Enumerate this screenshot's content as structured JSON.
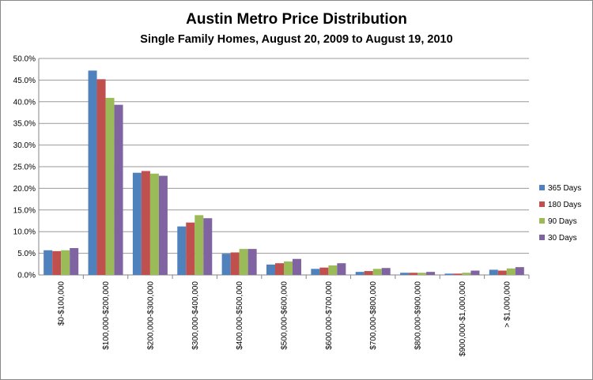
{
  "chart_data": {
    "type": "bar",
    "title": "Austin Metro Price Distribution",
    "subtitle": "Single Family Homes, August 20, 2009 to August 19, 2010",
    "xlabel": "",
    "ylabel": "",
    "ylim": [
      0,
      50
    ],
    "yticks": [
      "0.0%",
      "5.0%",
      "10.0%",
      "15.0%",
      "20.0%",
      "25.0%",
      "30.0%",
      "35.0%",
      "40.0%",
      "45.0%",
      "50.0%"
    ],
    "grid": true,
    "legend_position": "right",
    "categories": [
      "$0-$100,000",
      "$100,000-$200,000",
      "$200,000-$300,000",
      "$300,000-$400,000",
      "$400,000-$500,000",
      "$500,000-$600,000",
      "$600,000-$700,000",
      "$700,000-$800,000",
      "$800,000-$900,000",
      "$900,000-$1,000,000",
      "> $1,000,000"
    ],
    "series": [
      {
        "name": "365 Days",
        "color": "#4f81bd",
        "values": [
          5.7,
          47.2,
          23.6,
          11.2,
          4.9,
          2.4,
          1.4,
          0.7,
          0.5,
          0.3,
          1.2
        ]
      },
      {
        "name": "180 Days",
        "color": "#c0504d",
        "values": [
          5.5,
          45.2,
          24.0,
          12.1,
          5.2,
          2.7,
          1.7,
          0.9,
          0.5,
          0.3,
          1.0
        ]
      },
      {
        "name": "90 Days",
        "color": "#9bbb59",
        "values": [
          5.7,
          40.9,
          23.4,
          13.8,
          6.0,
          3.1,
          2.2,
          1.4,
          0.5,
          0.5,
          1.5
        ]
      },
      {
        "name": "30 Days",
        "color": "#8064a2",
        "values": [
          6.2,
          39.3,
          22.9,
          13.1,
          6.0,
          3.7,
          2.7,
          1.6,
          0.7,
          1.0,
          1.8
        ]
      }
    ]
  }
}
